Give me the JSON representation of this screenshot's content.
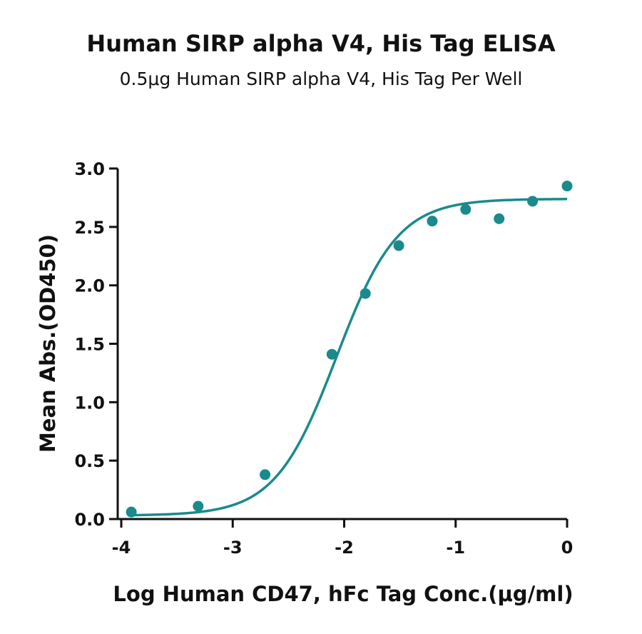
{
  "chart_data": {
    "type": "scatter",
    "title": "Human SIRP alpha V4, His Tag ELISA",
    "subtitle": "0.5μg Human SIRP alpha V4, His Tag Per Well",
    "xlabel": "Log Human CD47, hFc Tag Conc.(μg/ml)",
    "ylabel": "Mean Abs.(OD450)",
    "xlim": [
      -4,
      0
    ],
    "ylim": [
      0,
      3
    ],
    "xticks": [
      -4,
      -3,
      -2,
      -1,
      0
    ],
    "yticks": [
      0.0,
      0.5,
      1.0,
      1.5,
      2.0,
      2.5,
      3.0
    ],
    "xtick_labels": [
      "-4",
      "-3",
      "-2",
      "-1",
      "0"
    ],
    "ytick_labels": [
      "0.0",
      "0.5",
      "1.0",
      "1.5",
      "2.0",
      "2.5",
      "3.0"
    ],
    "color": "#1a8a8c",
    "series": [
      {
        "x": [
          -3.91,
          -3.31,
          -2.71,
          -2.11,
          -1.81,
          -1.51,
          -1.21,
          -0.91,
          -0.61,
          -0.31,
          0.0
        ],
        "y": [
          0.06,
          0.11,
          0.38,
          1.41,
          1.93,
          2.34,
          2.55,
          2.65,
          2.57,
          2.72,
          2.85
        ]
      }
    ],
    "fit": {
      "model": "4PL",
      "bottom": 0.03,
      "top": 2.74,
      "logEC50": -2.07,
      "hill": 1.58,
      "x_range": [
        -3.92,
        0.0
      ]
    }
  }
}
